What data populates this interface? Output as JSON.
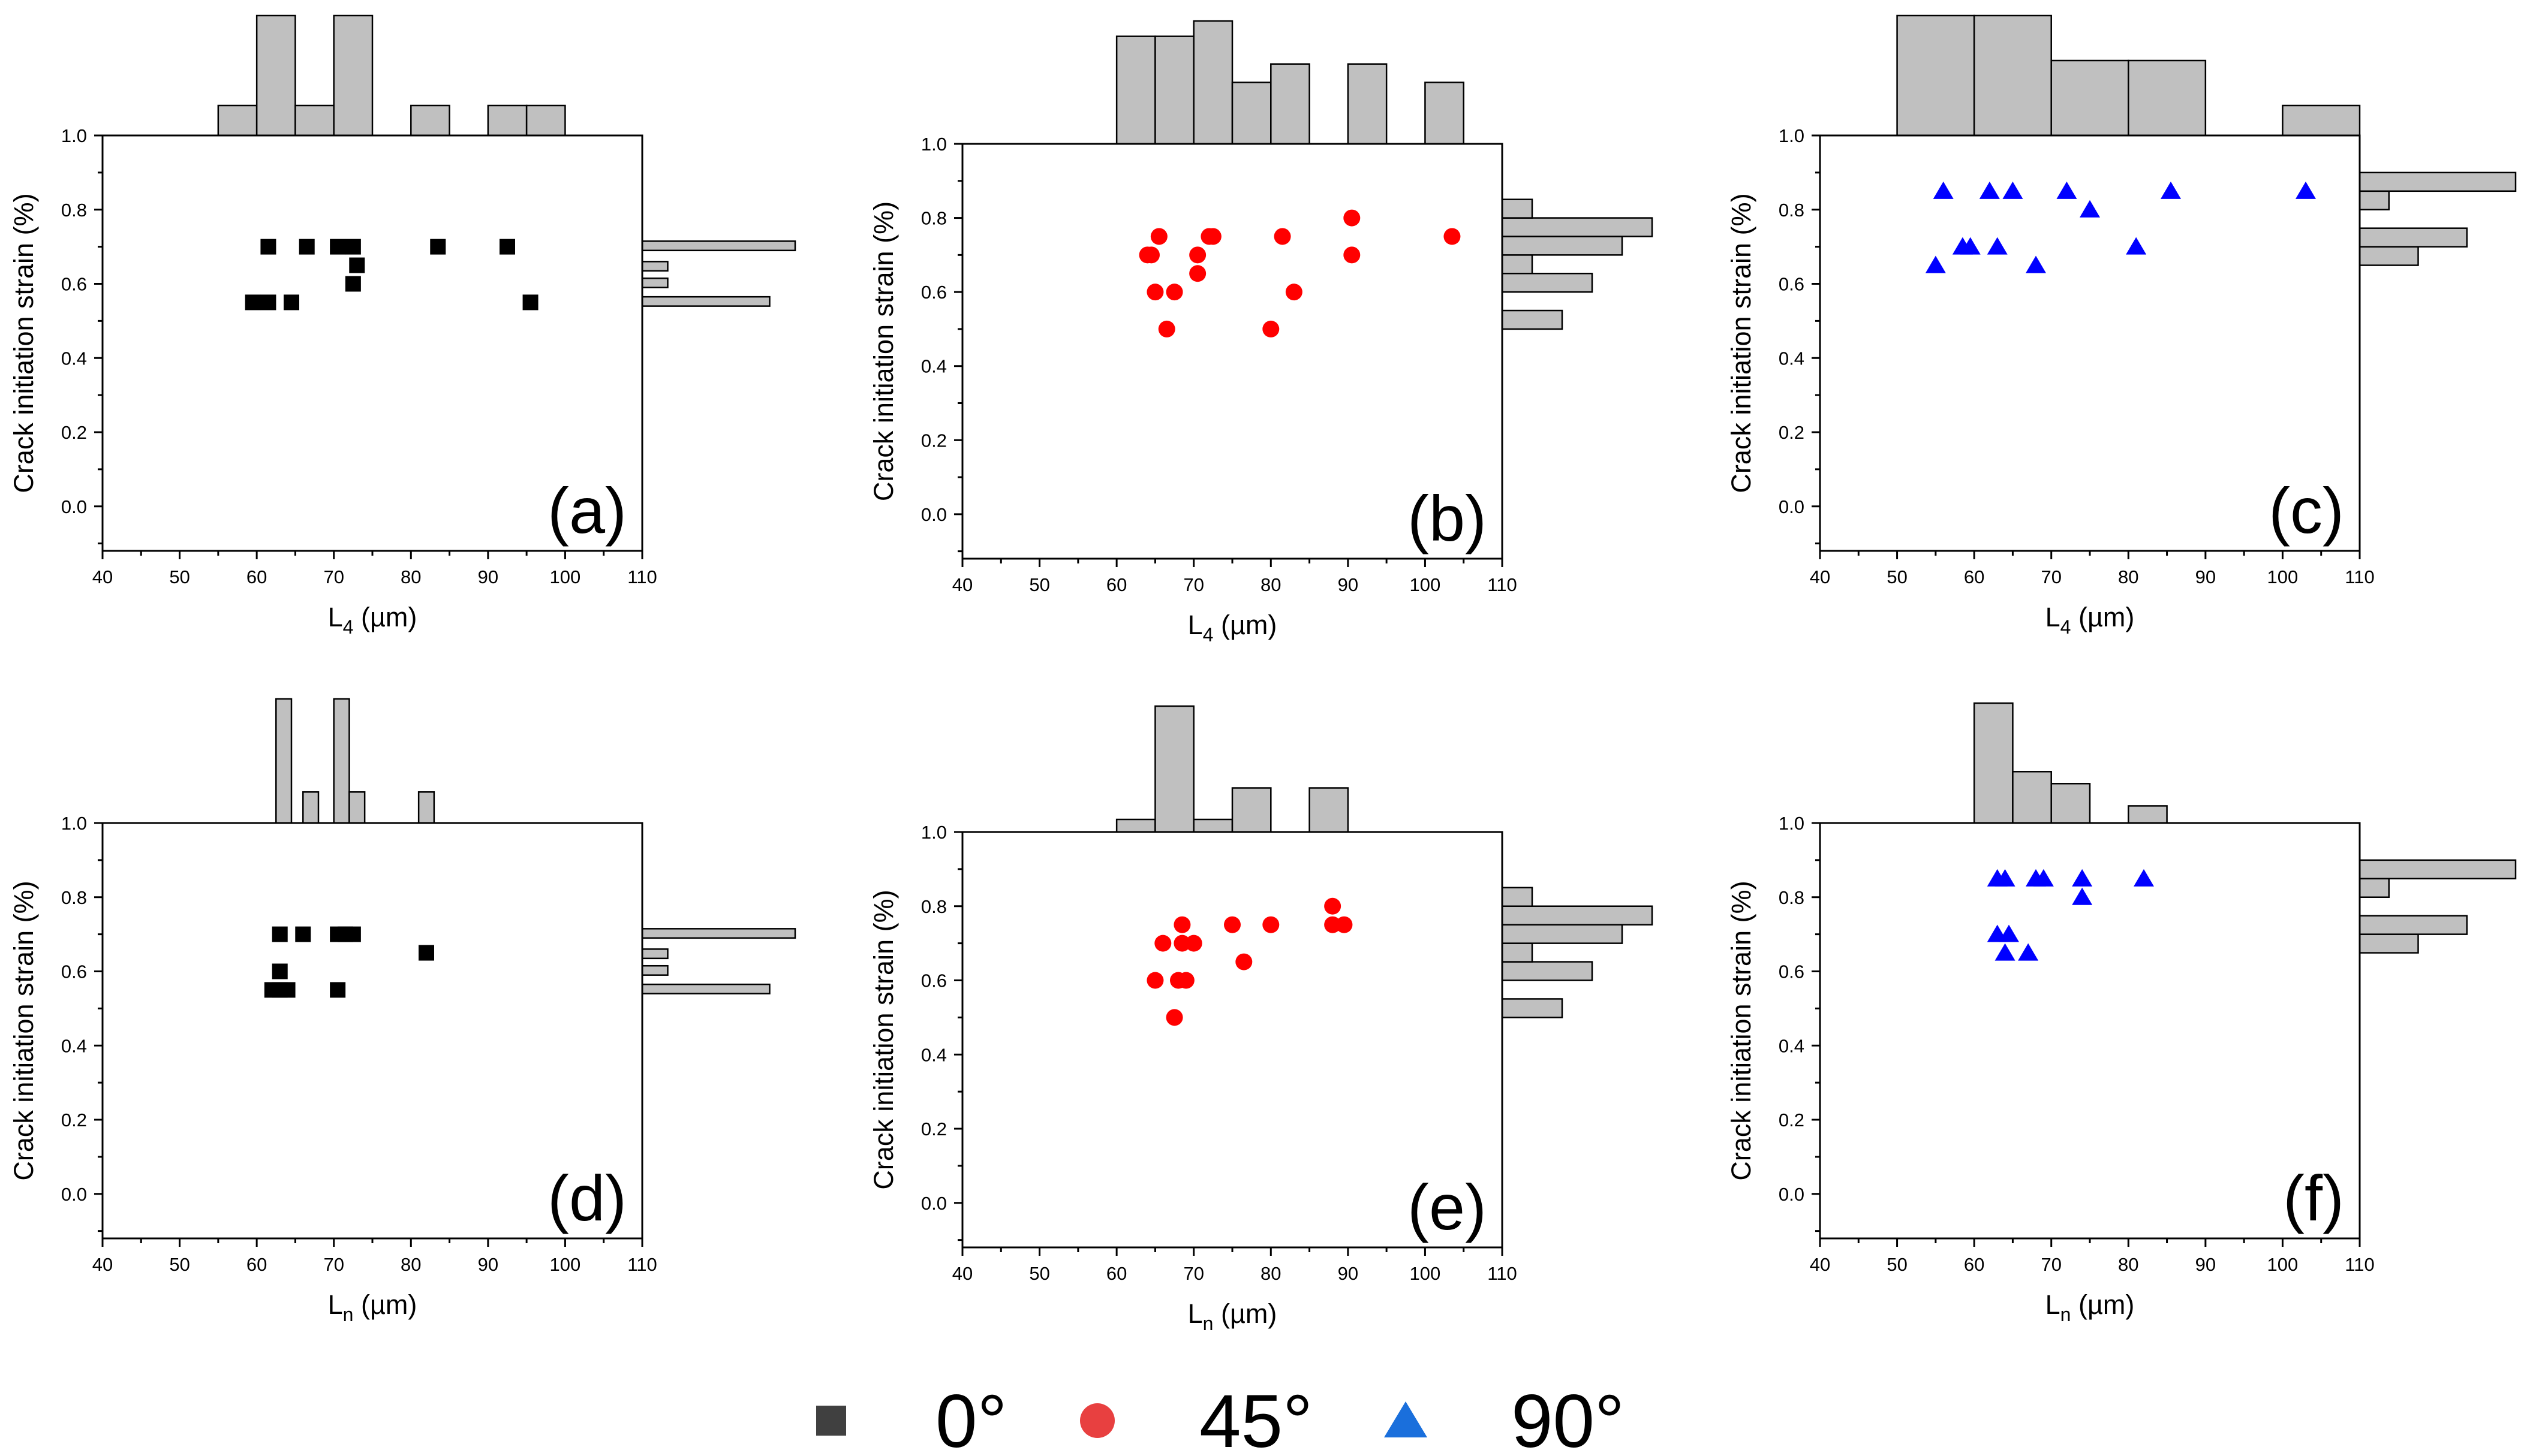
{
  "chart_data": [
    {
      "type": "scatter",
      "panel": "(a)",
      "series_name": "0°",
      "marker": "square",
      "color": "#000000",
      "xlabel_main": "L",
      "xlabel_sub": "4",
      "xlabel_unit": " (µm)",
      "ylabel": "Crack initiation strain (%)",
      "xlim": [
        40,
        110
      ],
      "ylim": [
        -0.12,
        1.0
      ],
      "xticks": [
        40,
        50,
        60,
        70,
        80,
        90,
        100,
        110
      ],
      "yticks": [
        0.0,
        0.2,
        0.4,
        0.6,
        0.8,
        1.0
      ],
      "points": [
        {
          "x": 59.5,
          "y": 0.55
        },
        {
          "x": 61.5,
          "y": 0.55
        },
        {
          "x": 64.5,
          "y": 0.55
        },
        {
          "x": 61.5,
          "y": 0.7
        },
        {
          "x": 66.5,
          "y": 0.7
        },
        {
          "x": 70.5,
          "y": 0.7
        },
        {
          "x": 72.5,
          "y": 0.7
        },
        {
          "x": 72.5,
          "y": 0.6
        },
        {
          "x": 73.0,
          "y": 0.65
        },
        {
          "x": 83.5,
          "y": 0.7
        },
        {
          "x": 92.5,
          "y": 0.7
        },
        {
          "x": 95.5,
          "y": 0.55
        }
      ],
      "top_hist": [
        {
          "x0": 55,
          "x1": 60,
          "count": 1
        },
        {
          "x0": 60,
          "x1": 65,
          "count": 4
        },
        {
          "x0": 65,
          "x1": 70,
          "count": 1
        },
        {
          "x0": 70,
          "x1": 75,
          "count": 4
        },
        {
          "x0": 80,
          "x1": 85,
          "count": 1
        },
        {
          "x0": 90,
          "x1": 95,
          "count": 1
        },
        {
          "x0": 95,
          "x1": 100,
          "count": 1
        }
      ],
      "right_hist": [
        {
          "y0": 0.54,
          "y1": 0.565,
          "count": 5
        },
        {
          "y0": 0.59,
          "y1": 0.615,
          "count": 1
        },
        {
          "y0": 0.635,
          "y1": 0.66,
          "count": 1
        },
        {
          "y0": 0.69,
          "y1": 0.715,
          "count": 6
        }
      ]
    },
    {
      "type": "scatter",
      "panel": "(b)",
      "series_name": "45°",
      "marker": "circle",
      "color": "#ff0000",
      "xlabel_main": "L",
      "xlabel_sub": "4",
      "xlabel_unit": " (µm)",
      "ylabel": "Crack initiation strain (%)",
      "xlim": [
        40,
        110
      ],
      "ylim": [
        -0.12,
        1.0
      ],
      "xticks": [
        40,
        50,
        60,
        70,
        80,
        90,
        100,
        110
      ],
      "yticks": [
        0.0,
        0.2,
        0.4,
        0.6,
        0.8,
        1.0
      ],
      "points": [
        {
          "x": 64.0,
          "y": 0.7
        },
        {
          "x": 64.5,
          "y": 0.7
        },
        {
          "x": 65.0,
          "y": 0.6
        },
        {
          "x": 65.5,
          "y": 0.75
        },
        {
          "x": 66.5,
          "y": 0.5
        },
        {
          "x": 67.5,
          "y": 0.6
        },
        {
          "x": 70.5,
          "y": 0.7
        },
        {
          "x": 70.5,
          "y": 0.65
        },
        {
          "x": 72.0,
          "y": 0.75
        },
        {
          "x": 72.5,
          "y": 0.75
        },
        {
          "x": 80.0,
          "y": 0.5
        },
        {
          "x": 81.5,
          "y": 0.75
        },
        {
          "x": 83.0,
          "y": 0.6
        },
        {
          "x": 90.5,
          "y": 0.8
        },
        {
          "x": 90.5,
          "y": 0.7
        },
        {
          "x": 103.5,
          "y": 0.75
        }
      ],
      "top_hist": [
        {
          "x0": 60,
          "x1": 65,
          "count": 3.5
        },
        {
          "x0": 65,
          "x1": 70,
          "count": 3.5
        },
        {
          "x0": 70,
          "x1": 75,
          "count": 4
        },
        {
          "x0": 75,
          "x1": 80,
          "count": 2
        },
        {
          "x0": 80,
          "x1": 85,
          "count": 2.6
        },
        {
          "x0": 90,
          "x1": 95,
          "count": 2.6
        },
        {
          "x0": 100,
          "x1": 105,
          "count": 2
        }
      ],
      "right_hist": [
        {
          "y0": 0.5,
          "y1": 0.55,
          "count": 4
        },
        {
          "y0": 0.6,
          "y1": 0.65,
          "count": 6
        },
        {
          "y0": 0.65,
          "y1": 0.7,
          "count": 2
        },
        {
          "y0": 0.7,
          "y1": 0.75,
          "count": 8
        },
        {
          "y0": 0.75,
          "y1": 0.8,
          "count": 10
        },
        {
          "y0": 0.8,
          "y1": 0.85,
          "count": 2
        }
      ]
    },
    {
      "type": "scatter",
      "panel": "(c)",
      "series_name": "90°",
      "marker": "triangle",
      "color": "#0000ff",
      "xlabel_main": "L",
      "xlabel_sub": "4",
      "xlabel_unit": " (µm)",
      "ylabel": "Crack initiation strain (%)",
      "xlim": [
        40,
        110
      ],
      "ylim": [
        -0.12,
        1.0
      ],
      "xticks": [
        40,
        50,
        60,
        70,
        80,
        90,
        100,
        110
      ],
      "yticks": [
        0.0,
        0.2,
        0.4,
        0.6,
        0.8,
        1.0
      ],
      "points": [
        {
          "x": 55.0,
          "y": 0.65
        },
        {
          "x": 56.0,
          "y": 0.85
        },
        {
          "x": 58.5,
          "y": 0.7
        },
        {
          "x": 59.5,
          "y": 0.7
        },
        {
          "x": 62.0,
          "y": 0.85
        },
        {
          "x": 63.0,
          "y": 0.7
        },
        {
          "x": 65.0,
          "y": 0.85
        },
        {
          "x": 68.0,
          "y": 0.65
        },
        {
          "x": 72.0,
          "y": 0.85
        },
        {
          "x": 75.0,
          "y": 0.8
        },
        {
          "x": 81.0,
          "y": 0.7
        },
        {
          "x": 85.5,
          "y": 0.85
        },
        {
          "x": 103.0,
          "y": 0.85
        }
      ],
      "top_hist": [
        {
          "x0": 50,
          "x1": 60,
          "count": 4
        },
        {
          "x0": 60,
          "x1": 70,
          "count": 4
        },
        {
          "x0": 70,
          "x1": 80,
          "count": 2.5
        },
        {
          "x0": 80,
          "x1": 90,
          "count": 2.5
        },
        {
          "x0": 100,
          "x1": 110,
          "count": 1
        }
      ],
      "right_hist": [
        {
          "y0": 0.65,
          "y1": 0.7,
          "count": 3
        },
        {
          "y0": 0.7,
          "y1": 0.75,
          "count": 5.5
        },
        {
          "y0": 0.8,
          "y1": 0.85,
          "count": 1.5
        },
        {
          "y0": 0.85,
          "y1": 0.9,
          "count": 8
        }
      ]
    },
    {
      "type": "scatter",
      "panel": "(d)",
      "series_name": "0°",
      "marker": "square",
      "color": "#000000",
      "xlabel_main": "L",
      "xlabel_sub": "n",
      "xlabel_unit": " (µm)",
      "ylabel": "Crack initiation strain (%)",
      "xlim": [
        40,
        110
      ],
      "ylim": [
        -0.12,
        1.0
      ],
      "xticks": [
        40,
        50,
        60,
        70,
        80,
        90,
        100,
        110
      ],
      "yticks": [
        0.0,
        0.2,
        0.4,
        0.6,
        0.8,
        1.0
      ],
      "points": [
        {
          "x": 62.0,
          "y": 0.55
        },
        {
          "x": 63.0,
          "y": 0.55
        },
        {
          "x": 64.0,
          "y": 0.55
        },
        {
          "x": 63.0,
          "y": 0.6
        },
        {
          "x": 63.0,
          "y": 0.7
        },
        {
          "x": 66.0,
          "y": 0.7
        },
        {
          "x": 70.5,
          "y": 0.7
        },
        {
          "x": 71.5,
          "y": 0.7
        },
        {
          "x": 72.5,
          "y": 0.7
        },
        {
          "x": 70.5,
          "y": 0.55
        },
        {
          "x": 82.0,
          "y": 0.65
        }
      ],
      "top_hist": [
        {
          "x0": 62.5,
          "x1": 64.5,
          "count": 4
        },
        {
          "x0": 66,
          "x1": 68,
          "count": 1
        },
        {
          "x0": 70,
          "x1": 72,
          "count": 4
        },
        {
          "x0": 72,
          "x1": 74,
          "count": 1
        },
        {
          "x0": 81,
          "x1": 83,
          "count": 1
        }
      ],
      "right_hist": [
        {
          "y0": 0.54,
          "y1": 0.565,
          "count": 5
        },
        {
          "y0": 0.59,
          "y1": 0.615,
          "count": 1
        },
        {
          "y0": 0.635,
          "y1": 0.66,
          "count": 1
        },
        {
          "y0": 0.69,
          "y1": 0.715,
          "count": 6
        }
      ]
    },
    {
      "type": "scatter",
      "panel": "(e)",
      "series_name": "45°",
      "marker": "circle",
      "color": "#ff0000",
      "xlabel_main": "L",
      "xlabel_sub": "n",
      "xlabel_unit": " (µm)",
      "ylabel": "Crack initiation strain (%)",
      "xlim": [
        40,
        110
      ],
      "ylim": [
        -0.12,
        1.0
      ],
      "xticks": [
        40,
        50,
        60,
        70,
        80,
        90,
        100,
        110
      ],
      "yticks": [
        0.0,
        0.2,
        0.4,
        0.6,
        0.8,
        1.0
      ],
      "points": [
        {
          "x": 65.0,
          "y": 0.6
        },
        {
          "x": 66.0,
          "y": 0.7
        },
        {
          "x": 67.5,
          "y": 0.5
        },
        {
          "x": 68.0,
          "y": 0.6
        },
        {
          "x": 68.5,
          "y": 0.75
        },
        {
          "x": 68.5,
          "y": 0.7
        },
        {
          "x": 69.0,
          "y": 0.6
        },
        {
          "x": 70.0,
          "y": 0.7
        },
        {
          "x": 75.0,
          "y": 0.75
        },
        {
          "x": 76.5,
          "y": 0.65
        },
        {
          "x": 80.0,
          "y": 0.75
        },
        {
          "x": 88.0,
          "y": 0.8
        },
        {
          "x": 88.0,
          "y": 0.75
        },
        {
          "x": 89.5,
          "y": 0.75
        }
      ],
      "top_hist": [
        {
          "x0": 60,
          "x1": 65,
          "count": 1
        },
        {
          "x0": 65,
          "x1": 70,
          "count": 10
        },
        {
          "x0": 70,
          "x1": 75,
          "count": 1
        },
        {
          "x0": 75,
          "x1": 80,
          "count": 3.5
        },
        {
          "x0": 85,
          "x1": 90,
          "count": 3.5
        }
      ],
      "right_hist": [
        {
          "y0": 0.5,
          "y1": 0.55,
          "count": 4
        },
        {
          "y0": 0.6,
          "y1": 0.65,
          "count": 6
        },
        {
          "y0": 0.65,
          "y1": 0.7,
          "count": 2
        },
        {
          "y0": 0.7,
          "y1": 0.75,
          "count": 8
        },
        {
          "y0": 0.75,
          "y1": 0.8,
          "count": 10
        },
        {
          "y0": 0.8,
          "y1": 0.85,
          "count": 2
        }
      ]
    },
    {
      "type": "scatter",
      "panel": "(f)",
      "series_name": "90°",
      "marker": "triangle",
      "color": "#0000ff",
      "xlabel_main": "L",
      "xlabel_sub": "n",
      "xlabel_unit": " (µm)",
      "ylabel": "Crack initiation strain (%)",
      "xlim": [
        40,
        110
      ],
      "ylim": [
        -0.12,
        1.0
      ],
      "xticks": [
        40,
        50,
        60,
        70,
        80,
        90,
        100,
        110
      ],
      "yticks": [
        0.0,
        0.2,
        0.4,
        0.6,
        0.8,
        1.0
      ],
      "points": [
        {
          "x": 63.0,
          "y": 0.85
        },
        {
          "x": 64.0,
          "y": 0.85
        },
        {
          "x": 68.0,
          "y": 0.85
        },
        {
          "x": 69.0,
          "y": 0.85
        },
        {
          "x": 74.0,
          "y": 0.85
        },
        {
          "x": 82.0,
          "y": 0.85
        },
        {
          "x": 74.0,
          "y": 0.8
        },
        {
          "x": 63.0,
          "y": 0.7
        },
        {
          "x": 64.5,
          "y": 0.7
        },
        {
          "x": 64.0,
          "y": 0.65
        },
        {
          "x": 67.0,
          "y": 0.65
        }
      ],
      "top_hist": [
        {
          "x0": 60,
          "x1": 65,
          "count": 7
        },
        {
          "x0": 65,
          "x1": 70,
          "count": 3
        },
        {
          "x0": 70,
          "x1": 75,
          "count": 2.3
        },
        {
          "x0": 80,
          "x1": 85,
          "count": 1
        }
      ],
      "right_hist": [
        {
          "y0": 0.65,
          "y1": 0.7,
          "count": 3
        },
        {
          "y0": 0.7,
          "y1": 0.75,
          "count": 5.5
        },
        {
          "y0": 0.8,
          "y1": 0.85,
          "count": 1.5
        },
        {
          "y0": 0.85,
          "y1": 0.9,
          "count": 8
        }
      ]
    }
  ],
  "legend": {
    "items": [
      {
        "marker": "square",
        "color": "#404040",
        "label": "0°"
      },
      {
        "marker": "circle",
        "color": "#e84040",
        "label": "45°"
      },
      {
        "marker": "triangle",
        "color": "#1a6fdc",
        "label": "90°"
      }
    ]
  },
  "histogram_color": "#c0c0c0"
}
